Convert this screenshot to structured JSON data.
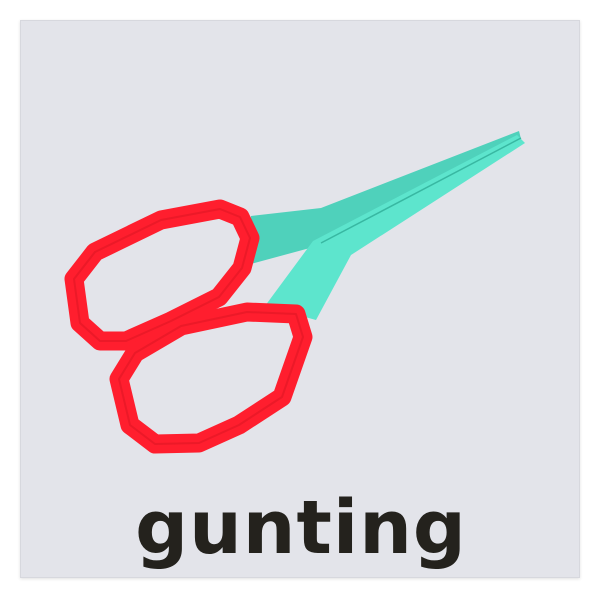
{
  "card": {
    "word": "gunting"
  },
  "colors": {
    "background": "#e3e4ea",
    "handle": "#ff1e2e",
    "blade": "#58e0c8",
    "text": "#24221d"
  },
  "illustration": {
    "icon": "scissors-icon"
  }
}
